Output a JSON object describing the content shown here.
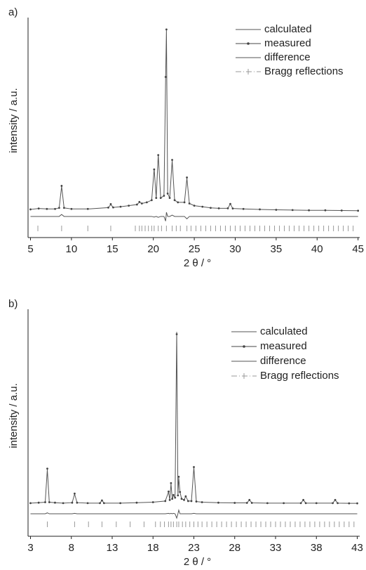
{
  "chart_data": [
    {
      "type": "line",
      "label": "a)",
      "x_label": "2 θ / °",
      "y_label": "intensity / a.u.",
      "xlim": [
        4.7,
        45.2
      ],
      "xticks": [
        5,
        10,
        15,
        20,
        25,
        30,
        35,
        40,
        45
      ],
      "ylim": [
        0,
        100
      ],
      "x": [
        5,
        6,
        7,
        8,
        8.5,
        8.8,
        9.1,
        10,
        12,
        14.5,
        14.8,
        15.1,
        16,
        17,
        18,
        18.3,
        18.6,
        19.2,
        19.8,
        20.1,
        20.35,
        20.6,
        20.9,
        21.3,
        21.5,
        21.6,
        21.75,
        22.0,
        22.3,
        22.6,
        23,
        23.8,
        24.1,
        24.4,
        25,
        26,
        27,
        28,
        29.1,
        29.4,
        29.7,
        31,
        33,
        35,
        37,
        39,
        41,
        43,
        45
      ],
      "series": [
        {
          "name": "calculated",
          "color": "#555555",
          "values": [
            12.8,
            13.2,
            13,
            13,
            13.5,
            23.3,
            13.5,
            13,
            13,
            13.6,
            15,
            13.7,
            14,
            14.5,
            15,
            16,
            15.5,
            16,
            17,
            31.3,
            18,
            37.7,
            18,
            19,
            72,
            94.6,
            20,
            18,
            35,
            17,
            16,
            16,
            27,
            15.5,
            14.5,
            14,
            13.5,
            13.3,
            13.3,
            15.3,
            13.2,
            13,
            12.8,
            12.6,
            12.5,
            12.4,
            12.4,
            12.3,
            12.2
          ]
        },
        {
          "name": "measured",
          "color": "#444444",
          "values": [
            12.8,
            13.2,
            13,
            13,
            13.5,
            23.5,
            13.5,
            13,
            13,
            13.6,
            15.2,
            13.7,
            14,
            14.5,
            15,
            16.2,
            15.5,
            16,
            17,
            31,
            18,
            37.5,
            18,
            19,
            73,
            94.6,
            20,
            18,
            35.3,
            17,
            16,
            16,
            27.3,
            15.5,
            14.5,
            14,
            13.5,
            13.3,
            13.3,
            15.3,
            13.2,
            13,
            12.8,
            12.6,
            12.5,
            12.4,
            12.4,
            12.3,
            12.2
          ]
        },
        {
          "name": "difference",
          "color": "#555555",
          "values": [
            9.6,
            9.6,
            9.6,
            9.6,
            9.6,
            10.5,
            9.6,
            9.6,
            9.6,
            9.6,
            9.6,
            9.6,
            9.6,
            9.6,
            9.6,
            9.6,
            9.6,
            9.6,
            9.6,
            9.3,
            9.6,
            9.2,
            9.6,
            9.6,
            7.5,
            11.5,
            9.6,
            9.6,
            10.2,
            9.6,
            9.6,
            9.6,
            8.5,
            9.6,
            9.6,
            9.6,
            9.6,
            9.6,
            9.6,
            9.6,
            9.6,
            9.6,
            9.6,
            9.6,
            9.6,
            9.6,
            9.6,
            9.6,
            9.6
          ]
        }
      ],
      "reflections": {
        "name": "Bragg reflections",
        "color": "#999999",
        "x": [
          5.9,
          8.8,
          12.0,
          14.8,
          17.8,
          18.3,
          18.6,
          19.0,
          19.4,
          19.8,
          20.1,
          20.6,
          21.0,
          21.6,
          22.3,
          22.8,
          23.3,
          24.1,
          24.6,
          25.2,
          25.8,
          26.4,
          27,
          27.6,
          28.2,
          28.8,
          29.4,
          30,
          30.6,
          31.2,
          31.8,
          32.4,
          33,
          33.6,
          34.2,
          34.8,
          35.4,
          36,
          36.6,
          37.2,
          37.8,
          38.4,
          39,
          39.6,
          40.2,
          40.8,
          41.4,
          42,
          42.6,
          43.2,
          43.8,
          44.4
        ]
      }
    },
    {
      "type": "line",
      "label": "b)",
      "x_label": "2 θ / °",
      "y_label": "intensity / a.u.",
      "xlim": [
        2.7,
        43.3
      ],
      "xticks": [
        3,
        8,
        13,
        18,
        23,
        28,
        33,
        38,
        43
      ],
      "ylim": [
        0,
        100
      ],
      "x": [
        3,
        4,
        4.8,
        5.06,
        5.3,
        6,
        7,
        8.1,
        8.4,
        8.7,
        10,
        11.5,
        11.75,
        12,
        14,
        16,
        18,
        19.5,
        19.9,
        20.05,
        20.2,
        20.35,
        20.5,
        20.7,
        20.9,
        21.05,
        21.15,
        21.3,
        21.5,
        21.8,
        22.0,
        22.3,
        22.7,
        23.0,
        23.3,
        24,
        26,
        28,
        29.5,
        29.8,
        30.1,
        32,
        34,
        36.1,
        36.4,
        36.7,
        38,
        40,
        40.3,
        40.6,
        42,
        43
      ],
      "series": [
        {
          "name": "calculated",
          "color": "#555555",
          "values": [
            14.6,
            14.8,
            15,
            29.4,
            15,
            14.8,
            14.6,
            14.8,
            18.6,
            14.8,
            14.6,
            14.6,
            15.8,
            14.6,
            14.6,
            14.8,
            15,
            15.5,
            19.5,
            16,
            23.2,
            16.5,
            18,
            17,
            90,
            18,
            25.7,
            19.5,
            16.5,
            16,
            17.6,
            15.5,
            15.5,
            30.3,
            15.3,
            15,
            14.8,
            14.7,
            14.7,
            16,
            14.7,
            14.6,
            14.6,
            14.6,
            16,
            14.6,
            14.6,
            14.6,
            16,
            14.6,
            14.5,
            14.5
          ]
        },
        {
          "name": "measured",
          "color": "#444444",
          "values": [
            14.6,
            14.8,
            15,
            29.8,
            15,
            14.8,
            14.6,
            14.8,
            18.8,
            14.8,
            14.6,
            14.6,
            15.8,
            14.6,
            14.6,
            14.8,
            15,
            15.5,
            19.7,
            16,
            23.4,
            16.5,
            18.2,
            17,
            89,
            18,
            26.2,
            19.5,
            16.5,
            16,
            17.6,
            15.5,
            15.5,
            30.5,
            15.3,
            15,
            14.8,
            14.7,
            14.7,
            16,
            14.7,
            14.6,
            14.6,
            14.6,
            16,
            14.6,
            14.6,
            14.6,
            16,
            14.6,
            14.5,
            14.5
          ]
        },
        {
          "name": "difference",
          "color": "#555555",
          "values": [
            9.9,
            9.9,
            9.9,
            10.3,
            9.9,
            9.9,
            9.9,
            9.9,
            10.1,
            9.9,
            9.9,
            9.9,
            9.9,
            9.9,
            9.9,
            9.9,
            9.9,
            9.9,
            10.1,
            9.9,
            10.1,
            9.9,
            10.1,
            9.9,
            8,
            9.9,
            11.5,
            9.9,
            9.9,
            9.9,
            9.9,
            9.9,
            9.9,
            10.1,
            9.9,
            9.9,
            9.9,
            9.9,
            9.9,
            9.9,
            9.9,
            9.9,
            9.9,
            9.9,
            9.9,
            9.9,
            9.9,
            9.9,
            9.9,
            9.9,
            9.9,
            9.9
          ]
        }
      ],
      "reflections": {
        "name": "Bragg reflections",
        "color": "#999999",
        "x": [
          5.06,
          8.4,
          10.1,
          11.75,
          13.5,
          15.2,
          16.9,
          18.3,
          18.9,
          19.4,
          19.9,
          20.2,
          20.5,
          20.9,
          21.15,
          21.6,
          22.0,
          22.5,
          23.0,
          23.5,
          24.0,
          24.6,
          25.2,
          25.8,
          26.4,
          27,
          27.6,
          28.2,
          28.8,
          29.4,
          30,
          30.6,
          31.2,
          31.8,
          32.4,
          33,
          33.6,
          34.2,
          34.8,
          35.4,
          36,
          36.6,
          37.2,
          37.8,
          38.4,
          39,
          39.6,
          40.2,
          40.8,
          41.4,
          42,
          42.6
        ]
      }
    }
  ]
}
